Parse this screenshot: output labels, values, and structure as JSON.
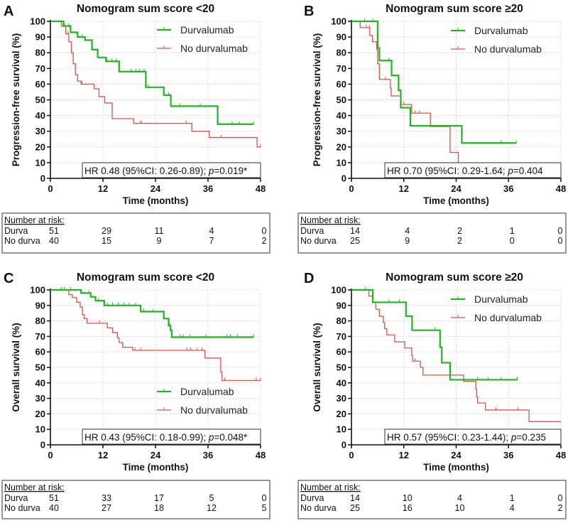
{
  "colors": {
    "durvalumab": "#22b522",
    "no_durvalumab": "#e0504a",
    "grid": "#d8d8d8",
    "axis": "#111111"
  },
  "chart_data": [
    {
      "panel": "A",
      "type": "line",
      "step": true,
      "title": "Nomogram sum score <20",
      "xlabel": "Time (months)",
      "ylabel": "Progression-free survival (%)",
      "xlim": [
        0,
        48
      ],
      "ylim": [
        0,
        100
      ],
      "xticks": [
        "0",
        "12",
        "24",
        "36",
        "48"
      ],
      "yticks": [
        "0",
        "10",
        "20",
        "30",
        "40",
        "50",
        "60",
        "70",
        "80",
        "90",
        "100"
      ],
      "grid": true,
      "legend_position": "top-right",
      "series": [
        {
          "name": "Durvalumab",
          "x": [
            0,
            3,
            4.6,
            6.2,
            7.9,
            9.5,
            10.8,
            12.7,
            15.7,
            21.8,
            25.9,
            27.5,
            38.2,
            46.4
          ],
          "y": [
            100,
            97,
            93,
            90,
            88,
            82,
            77,
            74.5,
            68,
            58,
            53,
            46,
            34.5,
            34.5
          ],
          "censored": [
            3.2,
            4.2,
            7.2,
            12.9,
            14.0,
            15.0,
            18.4,
            19.5,
            20.3,
            21.4,
            22.4,
            27.0,
            29.5,
            34.2,
            41.5,
            43.1,
            46.4
          ]
        },
        {
          "name": "No durvalumab",
          "x": [
            0,
            2.5,
            3.5,
            4.2,
            4.8,
            5.2,
            5.7,
            6.2,
            7,
            10,
            11.1,
            12.4,
            14.1,
            19,
            32.3,
            36.3,
            47.2,
            48
          ],
          "y": [
            100,
            97,
            92,
            87,
            80,
            73,
            66,
            62,
            60,
            57,
            52,
            48,
            38,
            35,
            30,
            26,
            20,
            20
          ],
          "censored": [
            4.0,
            7.2,
            20.5,
            20.8,
            31.0,
            39.0,
            48
          ]
        }
      ],
      "hr_text": "HR 0.48 (95%CI: 0.26-0.89); p=0.019*",
      "risk_table": {
        "header": "Number at risk:",
        "rows": [
          {
            "label": "Durva",
            "values": [
              "51",
              "29",
              "11",
              "4",
              "0"
            ]
          },
          {
            "label": "No durva",
            "values": [
              "40",
              "15",
              "9",
              "7",
              "2"
            ]
          }
        ]
      }
    },
    {
      "panel": "B",
      "type": "line",
      "step": true,
      "title": "Nomogram sum score ≥20",
      "xlabel": "Time (months)",
      "ylabel": "Progression-free survival (%)",
      "xlim": [
        0,
        48
      ],
      "ylim": [
        0,
        100
      ],
      "xticks": [
        "0",
        "12",
        "24",
        "36",
        "48"
      ],
      "yticks": [
        "0",
        "10",
        "20",
        "30",
        "40",
        "50",
        "60",
        "70",
        "80",
        "90",
        "100"
      ],
      "grid": true,
      "legend_position": "top-right",
      "series": [
        {
          "name": "Durvalumab",
          "x": [
            0,
            6.0,
            6.4,
            9.2,
            10.8,
            11.3,
            13.5,
            25.3,
            37.8
          ],
          "y": [
            100,
            83,
            75,
            65.5,
            56,
            45,
            33.5,
            22.5,
            22.5
          ],
          "censored": [
            3.0,
            4.9,
            8.6,
            34.3,
            37.8
          ]
        },
        {
          "name": "No durvalumab",
          "x": [
            0,
            2,
            4.2,
            4.8,
            5.8,
            6.0,
            6.4,
            8.9,
            9.1,
            11.3,
            13.8,
            18.1,
            22.6,
            24.5,
            32.9
          ],
          "y": [
            100,
            96,
            91,
            87,
            82,
            73,
            63,
            57.5,
            52.5,
            47,
            41.5,
            33,
            16.5,
            8.5,
            8.5
          ],
          "censored": [
            3.4,
            4.1,
            7.8,
            12.0,
            14.6,
            15.6,
            32.9
          ]
        }
      ],
      "hr_text": "HR 0.70 (95%CI: 0.29-1.64; p=0.404",
      "risk_table": {
        "header": "Number at risk:",
        "rows": [
          {
            "label": "Durva",
            "values": [
              "14",
              "4",
              "2",
              "1",
              "0"
            ]
          },
          {
            "label": "No durva",
            "values": [
              "25",
              "9",
              "2",
              "0",
              "0"
            ]
          }
        ]
      }
    },
    {
      "panel": "C",
      "type": "line",
      "step": true,
      "title": "Nomogram sum score <20",
      "xlabel": "Time (months)",
      "ylabel": "Overall survival (%)",
      "xlim": [
        0,
        48
      ],
      "ylim": [
        0,
        100
      ],
      "xticks": [
        "0",
        "12",
        "24",
        "36",
        "48"
      ],
      "yticks": [
        "0",
        "10",
        "20",
        "30",
        "40",
        "50",
        "60",
        "70",
        "80",
        "90",
        "100"
      ],
      "grid": true,
      "legend_position": "center-right",
      "series": [
        {
          "name": "Durvalumab",
          "x": [
            0,
            7,
            9.2,
            10.3,
            12.3,
            20.6,
            25.9,
            27,
            27.4,
            27.7,
            46.4
          ],
          "y": [
            100,
            98,
            95.5,
            93,
            90,
            86,
            81.5,
            77,
            74,
            69.5,
            69.5
          ],
          "censored": [
            2.5,
            3.2,
            4.6,
            8.8,
            11.0,
            13.0,
            14.2,
            15.5,
            16.8,
            18.0,
            19.5,
            21.3,
            23.5,
            27.2,
            29.6,
            30.3,
            31.9,
            35.5,
            40.3,
            41.1,
            42.7,
            46.4
          ]
        },
        {
          "name": "No durvalumab",
          "x": [
            0,
            4.2,
            5,
            6,
            6.8,
            7.3,
            7.7,
            8.4,
            13,
            14.2,
            15.3,
            15.7,
            16.5,
            18.8,
            35.3,
            38.9,
            39.2,
            48
          ],
          "y": [
            100,
            97,
            95,
            92,
            89,
            84,
            81.5,
            78.5,
            75.5,
            72.5,
            69,
            66,
            63,
            61,
            56,
            47,
            41.5,
            41.5
          ],
          "censored": [
            11.2,
            19.3,
            20.6,
            31.2,
            32.0,
            33.5,
            34.6,
            39.8,
            47,
            48
          ]
        }
      ],
      "hr_text": "HR 0.43 (95%CI: 0.18-0.99); p=0.048*",
      "risk_table": {
        "header": "Number at risk:",
        "rows": [
          {
            "label": "Durva",
            "values": [
              "51",
              "33",
              "17",
              "5",
              "0"
            ]
          },
          {
            "label": "No durva",
            "values": [
              "40",
              "27",
              "18",
              "12",
              "5"
            ]
          }
        ]
      }
    },
    {
      "panel": "D",
      "type": "line",
      "step": true,
      "title": "Nomogram sum score ≥20",
      "xlabel": "Time (months)",
      "ylabel": "Overall survival (%)",
      "xlim": [
        0,
        48
      ],
      "ylim": [
        0,
        100
      ],
      "xticks": [
        "0",
        "12",
        "24",
        "36",
        "48"
      ],
      "yticks": [
        "0",
        "10",
        "20",
        "30",
        "40",
        "50",
        "60",
        "70",
        "80",
        "90",
        "100"
      ],
      "grid": true,
      "legend_position": "top-right",
      "series": [
        {
          "name": "Durvalumab",
          "x": [
            0,
            4.9,
            12.5,
            13.9,
            20.3,
            20.7,
            22.6,
            38
          ],
          "y": [
            100,
            92,
            83,
            74,
            63,
            53,
            42,
            42
          ],
          "censored": [
            3.2,
            8.6,
            11.0,
            19.1,
            28.9,
            31.3,
            34.3,
            38
          ]
        },
        {
          "name": "No durvalumab",
          "x": [
            0,
            4,
            4.8,
            5.6,
            6.4,
            7.3,
            7.6,
            8.1,
            9.9,
            12.2,
            13.8,
            14.0,
            15.8,
            16.4,
            25.7,
            28.5,
            28.7,
            28.9,
            30.7,
            40.7,
            48
          ],
          "y": [
            100,
            96,
            92,
            87.5,
            83,
            79,
            75,
            71,
            66.5,
            62.5,
            58,
            54,
            50,
            45,
            41,
            36,
            31,
            27,
            22.5,
            15,
            15
          ],
          "censored": [
            14.6,
            33.1,
            38.2
          ]
        }
      ],
      "hr_text": "HR 0.57 (95%CI: 0.23-1.44); p=0.235",
      "risk_table": {
        "header": "Number at risk:",
        "rows": [
          {
            "label": "Durva",
            "values": [
              "14",
              "10",
              "4",
              "1",
              "0"
            ]
          },
          {
            "label": "No durva",
            "values": [
              "25",
              "16",
              "10",
              "4",
              "2"
            ]
          }
        ]
      }
    }
  ]
}
